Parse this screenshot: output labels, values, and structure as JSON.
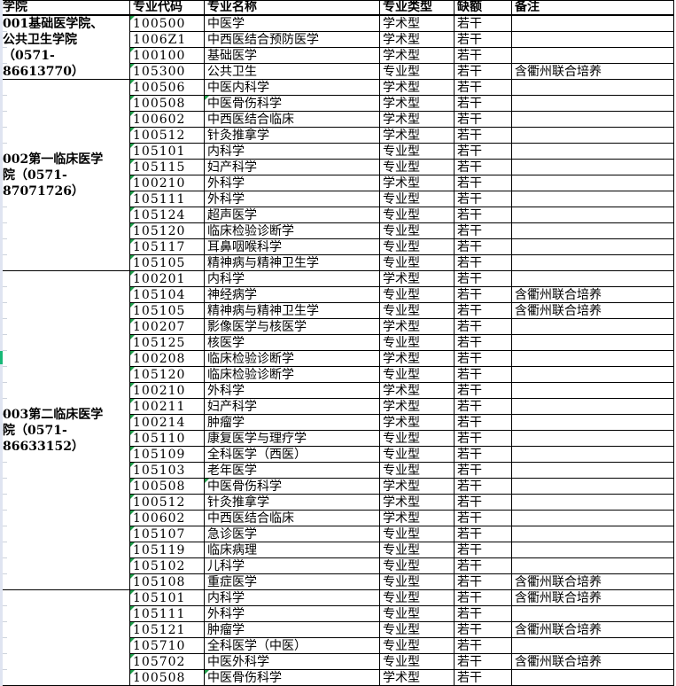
{
  "colors": {
    "border": "#000000",
    "error_triangle_green": "#1e9e4a",
    "scroll_indicator_green": "#17b877",
    "edge_strip_lavender": "#dfe4f1",
    "sliver_gridline_gray": "#cdd3dc"
  },
  "icons": {
    "error_triangle": "excel-number-stored-as-text-indicator"
  },
  "table": {
    "headers": [
      "学院",
      "专业代码",
      "专业名称",
      "专业类型",
      "缺额",
      "备注"
    ],
    "groups": [
      {
        "college": "001基础医学院、\n公共卫生学院\n（0571-\n86613770）",
        "rows": [
          {
            "code": "100500",
            "name": "中医学",
            "type": "学术型",
            "quota": "若干",
            "remark": "",
            "code_flag": true,
            "name_flag": false
          },
          {
            "code": "1006Z1",
            "name": "中西医结合预防医学",
            "type": "学术型",
            "quota": "若干",
            "remark": "",
            "code_flag": false,
            "name_flag": false
          },
          {
            "code": "100100",
            "name": "基础医学",
            "type": "学术型",
            "quota": "若干",
            "remark": "",
            "code_flag": true,
            "name_flag": false
          },
          {
            "code": "105300",
            "name": "公共卫生",
            "type": "专业型",
            "quota": "若干",
            "remark": "含衢州联合培养",
            "code_flag": true,
            "name_flag": false
          }
        ]
      },
      {
        "college": "002第一临床医学\n院（0571-\n87071726）",
        "rows": [
          {
            "code": "100506",
            "name": "中医内科学",
            "type": "学术型",
            "quota": "若干",
            "remark": "",
            "code_flag": true,
            "name_flag": false
          },
          {
            "code": "100508",
            "name": "中医骨伤科学",
            "type": "学术型",
            "quota": "若干",
            "remark": "",
            "code_flag": true,
            "name_flag": true
          },
          {
            "code": "100602",
            "name": "中西医结合临床",
            "type": "学术型",
            "quota": "若干",
            "remark": "",
            "code_flag": true,
            "name_flag": false
          },
          {
            "code": "100512",
            "name": "针灸推拿学",
            "type": "学术型",
            "quota": "若干",
            "remark": "",
            "code_flag": true,
            "name_flag": false
          },
          {
            "code": "105101",
            "name": "内科学",
            "type": "专业型",
            "quota": "若干",
            "remark": "",
            "code_flag": true,
            "name_flag": false
          },
          {
            "code": "105115",
            "name": "妇产科学",
            "type": "专业型",
            "quota": "若干",
            "remark": "",
            "code_flag": true,
            "name_flag": false
          },
          {
            "code": "100210",
            "name": "外科学",
            "type": "学术型",
            "quota": "若干",
            "remark": "",
            "code_flag": true,
            "name_flag": false
          },
          {
            "code": "105111",
            "name": "外科学",
            "type": "专业型",
            "quota": "若干",
            "remark": "",
            "code_flag": true,
            "name_flag": false
          },
          {
            "code": "105124",
            "name": "超声医学",
            "type": "专业型",
            "quota": "若干",
            "remark": "",
            "code_flag": true,
            "name_flag": false
          },
          {
            "code": "105120",
            "name": "临床检验诊断学",
            "type": "专业型",
            "quota": "若干",
            "remark": "",
            "code_flag": true,
            "name_flag": false
          },
          {
            "code": "105117",
            "name": "耳鼻咽喉科学",
            "type": "专业型",
            "quota": "若干",
            "remark": "",
            "code_flag": true,
            "name_flag": false
          },
          {
            "code": "105105",
            "name": "精神病与精神卫生学",
            "type": "专业型",
            "quota": "若干",
            "remark": "",
            "code_flag": true,
            "name_flag": false
          }
        ]
      },
      {
        "college": "003第二临床医学\n院（0571-\n86633152）",
        "rows": [
          {
            "code": "100201",
            "name": "内科学",
            "type": "学术型",
            "quota": "若干",
            "remark": "",
            "code_flag": true,
            "name_flag": false
          },
          {
            "code": "105104",
            "name": "神经病学",
            "type": "专业型",
            "quota": "若干",
            "remark": "含衢州联合培养",
            "code_flag": true,
            "name_flag": false
          },
          {
            "code": "105105",
            "name": "精神病与精神卫生学",
            "type": "专业型",
            "quota": "若干",
            "remark": "含衢州联合培养",
            "code_flag": true,
            "name_flag": false
          },
          {
            "code": "100207",
            "name": "影像医学与核医学",
            "type": "学术型",
            "quota": "若干",
            "remark": "",
            "code_flag": true,
            "name_flag": false
          },
          {
            "code": "105125",
            "name": "核医学",
            "type": "专业型",
            "quota": "若干",
            "remark": "",
            "code_flag": true,
            "name_flag": false
          },
          {
            "code": "100208",
            "name": "临床检验诊断学",
            "type": "学术型",
            "quota": "若干",
            "remark": "",
            "code_flag": true,
            "name_flag": false
          },
          {
            "code": "105120",
            "name": "临床检验诊断学",
            "type": "专业型",
            "quota": "若干",
            "remark": "",
            "code_flag": true,
            "name_flag": false
          },
          {
            "code": "100210",
            "name": "外科学",
            "type": "学术型",
            "quota": "若干",
            "remark": "",
            "code_flag": true,
            "name_flag": false
          },
          {
            "code": "100211",
            "name": "妇产科学",
            "type": "学术型",
            "quota": "若干",
            "remark": "",
            "code_flag": true,
            "name_flag": false
          },
          {
            "code": "100214",
            "name": "肿瘤学",
            "type": "学术型",
            "quota": "若干",
            "remark": "",
            "code_flag": true,
            "name_flag": false
          },
          {
            "code": "105110",
            "name": "康复医学与理疗学",
            "type": "专业型",
            "quota": "若干",
            "remark": "",
            "code_flag": true,
            "name_flag": false
          },
          {
            "code": "105109",
            "name": "全科医学（西医）",
            "type": "专业型",
            "quota": "若干",
            "remark": "",
            "code_flag": true,
            "name_flag": false
          },
          {
            "code": "105103",
            "name": "老年医学",
            "type": "专业型",
            "quota": "若干",
            "remark": "",
            "code_flag": true,
            "name_flag": false
          },
          {
            "code": "100508",
            "name": "中医骨伤科学",
            "type": "学术型",
            "quota": "若干",
            "remark": "",
            "code_flag": true,
            "name_flag": true
          },
          {
            "code": "100512",
            "name": "针灸推拿学",
            "type": "学术型",
            "quota": "若干",
            "remark": "",
            "code_flag": true,
            "name_flag": false
          },
          {
            "code": "100602",
            "name": "中西医结合临床",
            "type": "学术型",
            "quota": "若干",
            "remark": "",
            "code_flag": true,
            "name_flag": false
          },
          {
            "code": "105107",
            "name": "急诊医学",
            "type": "专业型",
            "quota": "若干",
            "remark": "",
            "code_flag": true,
            "name_flag": false
          },
          {
            "code": "105119",
            "name": "临床病理",
            "type": "专业型",
            "quota": "若干",
            "remark": "",
            "code_flag": true,
            "name_flag": false
          },
          {
            "code": "105102",
            "name": "儿科学",
            "type": "专业型",
            "quota": "若干",
            "remark": "",
            "code_flag": true,
            "name_flag": false
          },
          {
            "code": "105108",
            "name": "重症医学",
            "type": "专业型",
            "quota": "若干",
            "remark": "含衢州联合培养",
            "code_flag": true,
            "name_flag": false
          }
        ]
      },
      {
        "college": "",
        "rows": [
          {
            "code": "105101",
            "name": "内科学",
            "type": "专业型",
            "quota": "若干",
            "remark": "含衢州联合培养",
            "code_flag": true,
            "name_flag": false
          },
          {
            "code": "105111",
            "name": "外科学",
            "type": "专业型",
            "quota": "若干",
            "remark": "",
            "code_flag": true,
            "name_flag": false
          },
          {
            "code": "105121",
            "name": "肿瘤学",
            "type": "专业型",
            "quota": "若干",
            "remark": "含衢州联合培养",
            "code_flag": true,
            "name_flag": false
          },
          {
            "code": "105710",
            "name": "全科医学（中医）",
            "type": "专业型",
            "quota": "若干",
            "remark": "",
            "code_flag": true,
            "name_flag": false
          },
          {
            "code": "105702",
            "name": "中医外科学",
            "type": "专业型",
            "quota": "若干",
            "remark": "含衢州联合培养",
            "code_flag": true,
            "name_flag": false
          },
          {
            "code": "100508",
            "name": "中医骨伤科学",
            "type": "学术型",
            "quota": "若干",
            "remark": "",
            "code_flag": true,
            "name_flag": true
          }
        ]
      }
    ]
  }
}
